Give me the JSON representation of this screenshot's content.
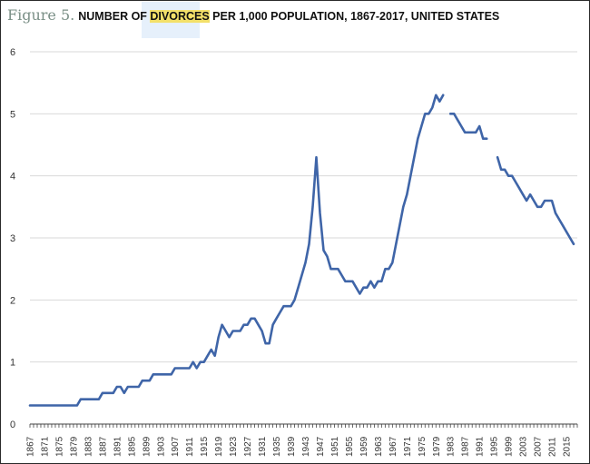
{
  "title": {
    "figure_label": "Figure 5.",
    "text_before": "NUMBER OF ",
    "highlight": "DIVORCES",
    "text_after": " PER 1,000  POPULATION, 1867-2017, UNITED STATES"
  },
  "colors": {
    "line": "#3f65a8",
    "grid": "#d9d9d9",
    "axis": "#444444",
    "highlight": "#f3e06a"
  },
  "chart_data": {
    "type": "line",
    "title": "NUMBER OF DIVORCES PER 1,000  POPULATION, 1867-2017, UNITED STATES",
    "xlabel": "",
    "ylabel": "",
    "ylim": [
      0,
      6
    ],
    "xlim": [
      1867,
      2018
    ],
    "y_ticks": [
      "0",
      "1",
      "2",
      "3",
      "4",
      "5",
      "6"
    ],
    "x_ticks": [
      "1867",
      "1871",
      "1875",
      "1879",
      "1883",
      "1887",
      "1891",
      "1895",
      "1899",
      "1903",
      "1907",
      "1911",
      "1915",
      "1919",
      "1923",
      "1927",
      "1931",
      "1935",
      "1939",
      "1943",
      "1947",
      "1951",
      "1955",
      "1959",
      "1963",
      "1967",
      "1971",
      "1975",
      "1979",
      "1983",
      "1987",
      "1991",
      "1995",
      "1999",
      "2003",
      "2007",
      "2011",
      "2015"
    ],
    "grid": "horizontal",
    "legend": "none",
    "series": [
      {
        "segments": [
          [
            [
              1867,
              0.3
            ],
            [
              1868,
              0.3
            ],
            [
              1869,
              0.3
            ],
            [
              1870,
              0.3
            ],
            [
              1871,
              0.3
            ],
            [
              1872,
              0.3
            ],
            [
              1873,
              0.3
            ],
            [
              1874,
              0.3
            ],
            [
              1875,
              0.3
            ],
            [
              1876,
              0.3
            ],
            [
              1877,
              0.3
            ],
            [
              1878,
              0.3
            ],
            [
              1879,
              0.3
            ],
            [
              1880,
              0.3
            ],
            [
              1881,
              0.4
            ],
            [
              1882,
              0.4
            ],
            [
              1883,
              0.4
            ],
            [
              1884,
              0.4
            ],
            [
              1885,
              0.4
            ],
            [
              1886,
              0.4
            ],
            [
              1887,
              0.5
            ],
            [
              1888,
              0.5
            ],
            [
              1889,
              0.5
            ],
            [
              1890,
              0.5
            ],
            [
              1891,
              0.6
            ],
            [
              1892,
              0.6
            ],
            [
              1893,
              0.5
            ],
            [
              1894,
              0.6
            ],
            [
              1895,
              0.6
            ],
            [
              1896,
              0.6
            ],
            [
              1897,
              0.6
            ],
            [
              1898,
              0.7
            ],
            [
              1899,
              0.7
            ],
            [
              1900,
              0.7
            ],
            [
              1901,
              0.8
            ],
            [
              1902,
              0.8
            ],
            [
              1903,
              0.8
            ],
            [
              1904,
              0.8
            ],
            [
              1905,
              0.8
            ],
            [
              1906,
              0.8
            ],
            [
              1907,
              0.9
            ],
            [
              1908,
              0.9
            ],
            [
              1909,
              0.9
            ],
            [
              1910,
              0.9
            ],
            [
              1911,
              0.9
            ],
            [
              1912,
              1.0
            ],
            [
              1913,
              0.9
            ],
            [
              1914,
              1.0
            ],
            [
              1915,
              1.0
            ],
            [
              1916,
              1.1
            ],
            [
              1917,
              1.2
            ],
            [
              1918,
              1.1
            ],
            [
              1919,
              1.4
            ],
            [
              1920,
              1.6
            ],
            [
              1921,
              1.5
            ],
            [
              1922,
              1.4
            ],
            [
              1923,
              1.5
            ],
            [
              1924,
              1.5
            ],
            [
              1925,
              1.5
            ],
            [
              1926,
              1.6
            ],
            [
              1927,
              1.6
            ],
            [
              1928,
              1.7
            ],
            [
              1929,
              1.7
            ],
            [
              1930,
              1.6
            ],
            [
              1931,
              1.5
            ],
            [
              1932,
              1.3
            ],
            [
              1933,
              1.3
            ],
            [
              1934,
              1.6
            ],
            [
              1935,
              1.7
            ],
            [
              1936,
              1.8
            ],
            [
              1937,
              1.9
            ],
            [
              1938,
              1.9
            ],
            [
              1939,
              1.9
            ],
            [
              1940,
              2.0
            ],
            [
              1941,
              2.2
            ],
            [
              1942,
              2.4
            ],
            [
              1943,
              2.6
            ],
            [
              1944,
              2.9
            ],
            [
              1945,
              3.5
            ],
            [
              1946,
              4.3
            ],
            [
              1947,
              3.4
            ],
            [
              1948,
              2.8
            ],
            [
              1949,
              2.7
            ],
            [
              1950,
              2.5
            ],
            [
              1951,
              2.5
            ],
            [
              1952,
              2.5
            ],
            [
              1953,
              2.4
            ],
            [
              1954,
              2.3
            ],
            [
              1955,
              2.3
            ],
            [
              1956,
              2.3
            ],
            [
              1957,
              2.2
            ],
            [
              1958,
              2.1
            ],
            [
              1959,
              2.2
            ],
            [
              1960,
              2.2
            ],
            [
              1961,
              2.3
            ],
            [
              1962,
              2.2
            ],
            [
              1963,
              2.3
            ],
            [
              1964,
              2.3
            ],
            [
              1965,
              2.5
            ],
            [
              1966,
              2.5
            ],
            [
              1967,
              2.6
            ],
            [
              1968,
              2.9
            ],
            [
              1969,
              3.2
            ],
            [
              1970,
              3.5
            ],
            [
              1971,
              3.7
            ],
            [
              1972,
              4.0
            ],
            [
              1973,
              4.3
            ],
            [
              1974,
              4.6
            ],
            [
              1975,
              4.8
            ],
            [
              1976,
              5.0
            ],
            [
              1977,
              5.0
            ],
            [
              1978,
              5.1
            ],
            [
              1979,
              5.3
            ],
            [
              1980,
              5.2
            ],
            [
              1981,
              5.3
            ]
          ],
          [
            [
              1983,
              5.0
            ],
            [
              1984,
              5.0
            ],
            [
              1985,
              4.9
            ],
            [
              1986,
              4.8
            ],
            [
              1987,
              4.7
            ],
            [
              1988,
              4.7
            ],
            [
              1989,
              4.7
            ],
            [
              1990,
              4.7
            ],
            [
              1991,
              4.8
            ],
            [
              1992,
              4.6
            ],
            [
              1993,
              4.6
            ]
          ],
          [
            [
              1996,
              4.3
            ],
            [
              1997,
              4.1
            ],
            [
              1998,
              4.1
            ],
            [
              1999,
              4.0
            ],
            [
              2000,
              4.0
            ],
            [
              2001,
              3.9
            ],
            [
              2002,
              3.8
            ],
            [
              2003,
              3.7
            ],
            [
              2004,
              3.6
            ],
            [
              2005,
              3.7
            ],
            [
              2006,
              3.6
            ],
            [
              2007,
              3.5
            ],
            [
              2008,
              3.5
            ],
            [
              2009,
              3.6
            ],
            [
              2010,
              3.6
            ],
            [
              2011,
              3.6
            ],
            [
              2012,
              3.4
            ],
            [
              2013,
              3.3
            ],
            [
              2014,
              3.2
            ],
            [
              2015,
              3.1
            ],
            [
              2016,
              3.0
            ],
            [
              2017,
              2.9
            ]
          ]
        ]
      }
    ]
  }
}
